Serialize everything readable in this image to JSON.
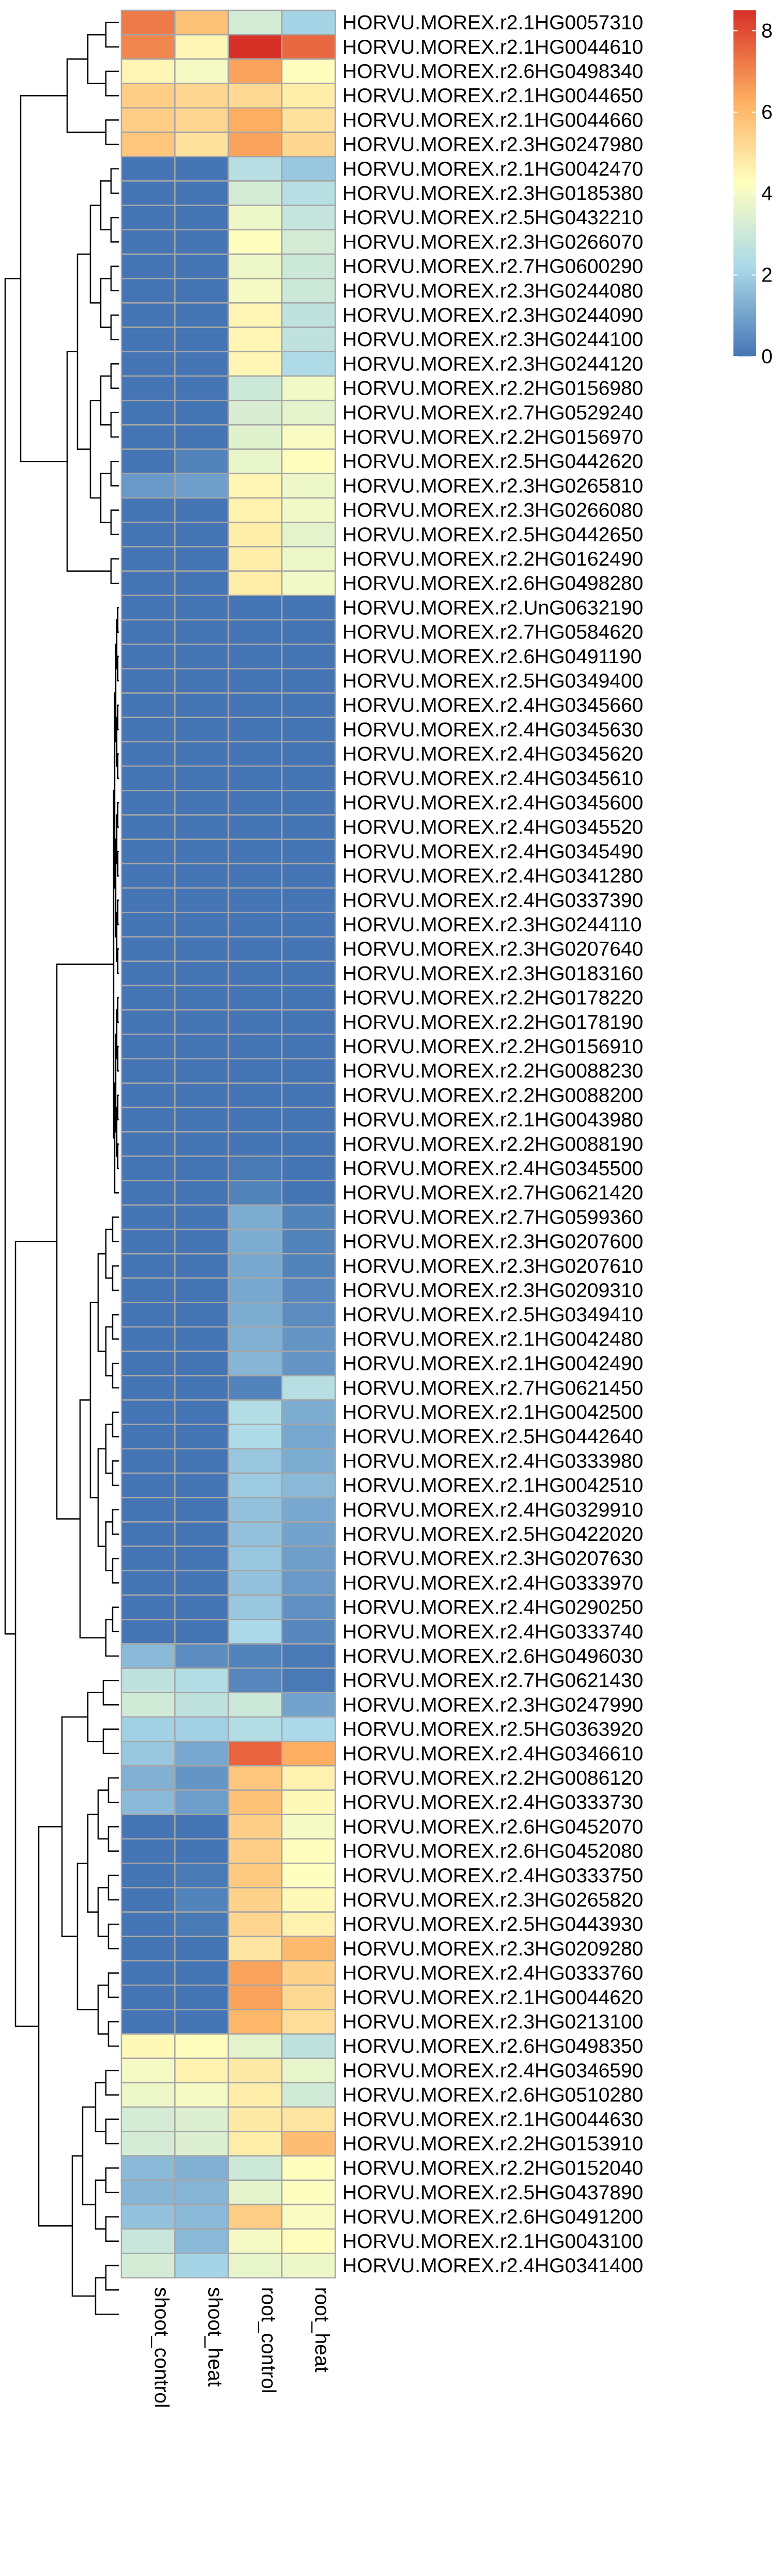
{
  "chart_data": {
    "type": "heatmap",
    "columns": [
      "shoot_control",
      "shoot_heat",
      "root_control",
      "root_heat"
    ],
    "rows": [
      "HORVU.MOREX.r2.1HG0057310",
      "HORVU.MOREX.r2.1HG0044610",
      "HORVU.MOREX.r2.6HG0498340",
      "HORVU.MOREX.r2.1HG0044650",
      "HORVU.MOREX.r2.1HG0044660",
      "HORVU.MOREX.r2.3HG0247980",
      "HORVU.MOREX.r2.1HG0042470",
      "HORVU.MOREX.r2.3HG0185380",
      "HORVU.MOREX.r2.5HG0432210",
      "HORVU.MOREX.r2.3HG0266070",
      "HORVU.MOREX.r2.7HG0600290",
      "HORVU.MOREX.r2.3HG0244080",
      "HORVU.MOREX.r2.3HG0244090",
      "HORVU.MOREX.r2.3HG0244100",
      "HORVU.MOREX.r2.3HG0244120",
      "HORVU.MOREX.r2.2HG0156980",
      "HORVU.MOREX.r2.7HG0529240",
      "HORVU.MOREX.r2.2HG0156970",
      "HORVU.MOREX.r2.5HG0442620",
      "HORVU.MOREX.r2.3HG0265810",
      "HORVU.MOREX.r2.3HG0266080",
      "HORVU.MOREX.r2.5HG0442650",
      "HORVU.MOREX.r2.2HG0162490",
      "HORVU.MOREX.r2.6HG0498280",
      "HORVU.MOREX.r2.UnG0632190",
      "HORVU.MOREX.r2.7HG0584620",
      "HORVU.MOREX.r2.6HG0491190",
      "HORVU.MOREX.r2.5HG0349400",
      "HORVU.MOREX.r2.4HG0345660",
      "HORVU.MOREX.r2.4HG0345630",
      "HORVU.MOREX.r2.4HG0345620",
      "HORVU.MOREX.r2.4HG0345610",
      "HORVU.MOREX.r2.4HG0345600",
      "HORVU.MOREX.r2.4HG0345520",
      "HORVU.MOREX.r2.4HG0345490",
      "HORVU.MOREX.r2.4HG0341280",
      "HORVU.MOREX.r2.4HG0337390",
      "HORVU.MOREX.r2.3HG0244110",
      "HORVU.MOREX.r2.3HG0207640",
      "HORVU.MOREX.r2.3HG0183160",
      "HORVU.MOREX.r2.2HG0178220",
      "HORVU.MOREX.r2.2HG0178190",
      "HORVU.MOREX.r2.2HG0156910",
      "HORVU.MOREX.r2.2HG0088230",
      "HORVU.MOREX.r2.2HG0088200",
      "HORVU.MOREX.r2.1HG0043980",
      "HORVU.MOREX.r2.2HG0088190",
      "HORVU.MOREX.r2.4HG0345500",
      "HORVU.MOREX.r2.7HG0621420",
      "HORVU.MOREX.r2.7HG0599360",
      "HORVU.MOREX.r2.3HG0207600",
      "HORVU.MOREX.r2.3HG0207610",
      "HORVU.MOREX.r2.3HG0209310",
      "HORVU.MOREX.r2.5HG0349410",
      "HORVU.MOREX.r2.1HG0042480",
      "HORVU.MOREX.r2.1HG0042490",
      "HORVU.MOREX.r2.7HG0621450",
      "HORVU.MOREX.r2.1HG0042500",
      "HORVU.MOREX.r2.5HG0442640",
      "HORVU.MOREX.r2.4HG0333980",
      "HORVU.MOREX.r2.1HG0042510",
      "HORVU.MOREX.r2.4HG0329910",
      "HORVU.MOREX.r2.5HG0422020",
      "HORVU.MOREX.r2.3HG0207630",
      "HORVU.MOREX.r2.4HG0333970",
      "HORVU.MOREX.r2.4HG0290250",
      "HORVU.MOREX.r2.4HG0333740",
      "HORVU.MOREX.r2.6HG0496030",
      "HORVU.MOREX.r2.7HG0621430",
      "HORVU.MOREX.r2.3HG0247990",
      "HORVU.MOREX.r2.5HG0363920",
      "HORVU.MOREX.r2.4HG0346610",
      "HORVU.MOREX.r2.2HG0086120",
      "HORVU.MOREX.r2.4HG0333730",
      "HORVU.MOREX.r2.6HG0452070",
      "HORVU.MOREX.r2.6HG0452080",
      "HORVU.MOREX.r2.4HG0333750",
      "HORVU.MOREX.r2.3HG0265820",
      "HORVU.MOREX.r2.5HG0443930",
      "HORVU.MOREX.r2.3HG0209280",
      "HORVU.MOREX.r2.4HG0333760",
      "HORVU.MOREX.r2.1HG0044620",
      "HORVU.MOREX.r2.3HG0213100",
      "HORVU.MOREX.r2.6HG0498350",
      "HORVU.MOREX.r2.4HG0346590",
      "HORVU.MOREX.r2.6HG0510280",
      "HORVU.MOREX.r2.1HG0044630",
      "HORVU.MOREX.r2.2HG0153910",
      "HORVU.MOREX.r2.2HG0152040",
      "HORVU.MOREX.r2.5HG0437890",
      "HORVU.MOREX.r2.6HG0491200",
      "HORVU.MOREX.r2.1HG0043100",
      "HORVU.MOREX.r2.4HG0341400"
    ],
    "values": [
      [
        7.2,
        5.8,
        3.2,
        2.1
      ],
      [
        7.0,
        4.5,
        8.5,
        7.5
      ],
      [
        4.5,
        4.0,
        6.5,
        4.3
      ],
      [
        5.5,
        5.3,
        5.2,
        4.7
      ],
      [
        5.5,
        5.3,
        6.3,
        5.0
      ],
      [
        5.7,
        5.0,
        6.5,
        5.3
      ],
      [
        0,
        0,
        2.5,
        1.8
      ],
      [
        0,
        0,
        3.2,
        2.5
      ],
      [
        0,
        0,
        3.8,
        2.8
      ],
      [
        0,
        0,
        4.2,
        3.2
      ],
      [
        0,
        0,
        3.8,
        3.0
      ],
      [
        0,
        0,
        4.0,
        3.0
      ],
      [
        0,
        0,
        4.5,
        2.7
      ],
      [
        0,
        0,
        4.5,
        2.7
      ],
      [
        0,
        0,
        4.5,
        2.3
      ],
      [
        0,
        0,
        3.0,
        3.9
      ],
      [
        0,
        0,
        3.3,
        3.6
      ],
      [
        0,
        0,
        3.5,
        4.1
      ],
      [
        0,
        0.3,
        3.7,
        4.3
      ],
      [
        0.8,
        0.9,
        4.5,
        3.8
      ],
      [
        0,
        0,
        4.6,
        3.9
      ],
      [
        0,
        0,
        4.7,
        3.6
      ],
      [
        0,
        0,
        4.7,
        3.8
      ],
      [
        0,
        0,
        4.7,
        3.9
      ],
      [
        0,
        0,
        0,
        0
      ],
      [
        0,
        0,
        0,
        0
      ],
      [
        0,
        0,
        0,
        0
      ],
      [
        0,
        0,
        0,
        0
      ],
      [
        0,
        0,
        0,
        0
      ],
      [
        0,
        0,
        0,
        0
      ],
      [
        0,
        0,
        0,
        0
      ],
      [
        0,
        0,
        0,
        0
      ],
      [
        0,
        0,
        0,
        0
      ],
      [
        0,
        0,
        0,
        0
      ],
      [
        0,
        0,
        0,
        0
      ],
      [
        0,
        0,
        0,
        0
      ],
      [
        0,
        0,
        0,
        0
      ],
      [
        0,
        0,
        0,
        0
      ],
      [
        0,
        0,
        0,
        0
      ],
      [
        0,
        0,
        0,
        0
      ],
      [
        0,
        0,
        0,
        0
      ],
      [
        0,
        0,
        0,
        0
      ],
      [
        0,
        0,
        0,
        0
      ],
      [
        0,
        0,
        0,
        0
      ],
      [
        0,
        0,
        0,
        0
      ],
      [
        0,
        0,
        0,
        0
      ],
      [
        0,
        0,
        0,
        0
      ],
      [
        0,
        0,
        0.1,
        0
      ],
      [
        0,
        0,
        0.3,
        0
      ],
      [
        0,
        0,
        1.2,
        0.3
      ],
      [
        0,
        0,
        1.2,
        0.3
      ],
      [
        0,
        0,
        1.1,
        0.3
      ],
      [
        0,
        0,
        1.1,
        0.4
      ],
      [
        0,
        0,
        1.2,
        0.5
      ],
      [
        0,
        0,
        1.3,
        0.7
      ],
      [
        0,
        0,
        1.4,
        0.7
      ],
      [
        0,
        0,
        0.3,
        2.5
      ],
      [
        0,
        0,
        2.4,
        1.2
      ],
      [
        0,
        0,
        2.3,
        1.1
      ],
      [
        0,
        0,
        1.8,
        1.2
      ],
      [
        0,
        0,
        1.9,
        1.5
      ],
      [
        0,
        0,
        1.7,
        1.1
      ],
      [
        0,
        0,
        1.7,
        1.0
      ],
      [
        0,
        0,
        1.8,
        0.9
      ],
      [
        0,
        0,
        1.7,
        0.8
      ],
      [
        0,
        0,
        1.8,
        0.6
      ],
      [
        0,
        0,
        2.2,
        0.4
      ],
      [
        1.5,
        0.5,
        0.3,
        0.1
      ],
      [
        2.7,
        2.4,
        0.4,
        0.1
      ],
      [
        3.1,
        2.7,
        3.0,
        1.0
      ],
      [
        2.0,
        2.0,
        2.4,
        2.2
      ],
      [
        1.8,
        1.1,
        7.6,
        6.3
      ],
      [
        1.3,
        0.7,
        5.7,
        4.6
      ],
      [
        1.5,
        0.9,
        5.8,
        4.4
      ],
      [
        0,
        0,
        5.5,
        4.0
      ],
      [
        0,
        0,
        5.5,
        4.3
      ],
      [
        0,
        0.1,
        5.6,
        4.2
      ],
      [
        0,
        0.3,
        5.4,
        4.4
      ],
      [
        0,
        0.1,
        5.3,
        4.6
      ],
      [
        0,
        0,
        4.9,
        6.0
      ],
      [
        0,
        0,
        6.5,
        5.4
      ],
      [
        0,
        0,
        6.5,
        5.2
      ],
      [
        0,
        0,
        6.1,
        5.1
      ],
      [
        4.4,
        4.3,
        3.6,
        2.7
      ],
      [
        4.0,
        4.6,
        4.8,
        3.7
      ],
      [
        3.8,
        4.0,
        4.7,
        3.1
      ],
      [
        3.2,
        3.4,
        4.8,
        4.9
      ],
      [
        3.2,
        3.4,
        4.7,
        5.9
      ],
      [
        1.5,
        1.3,
        3.0,
        4.3
      ],
      [
        1.4,
        1.4,
        3.6,
        4.2
      ],
      [
        1.7,
        1.5,
        5.5,
        4.1
      ],
      [
        2.9,
        1.5,
        4.0,
        4.3
      ],
      [
        3.2,
        2.1,
        3.7,
        3.8
      ]
    ],
    "color_scale": {
      "min": 0,
      "max": 8.5,
      "stops": [
        {
          "v": 0,
          "color": "#4575b4"
        },
        {
          "v": 2.2,
          "color": "#abd9e9"
        },
        {
          "v": 4.25,
          "color": "#ffffbf"
        },
        {
          "v": 6.3,
          "color": "#fdae61"
        },
        {
          "v": 8.5,
          "color": "#d73027"
        }
      ]
    },
    "legend": {
      "ticks": [
        0,
        2,
        4,
        6,
        8
      ],
      "placement": "top-right"
    },
    "row_dendrogram": "left",
    "cell_border_color": "#a6a6a6"
  }
}
